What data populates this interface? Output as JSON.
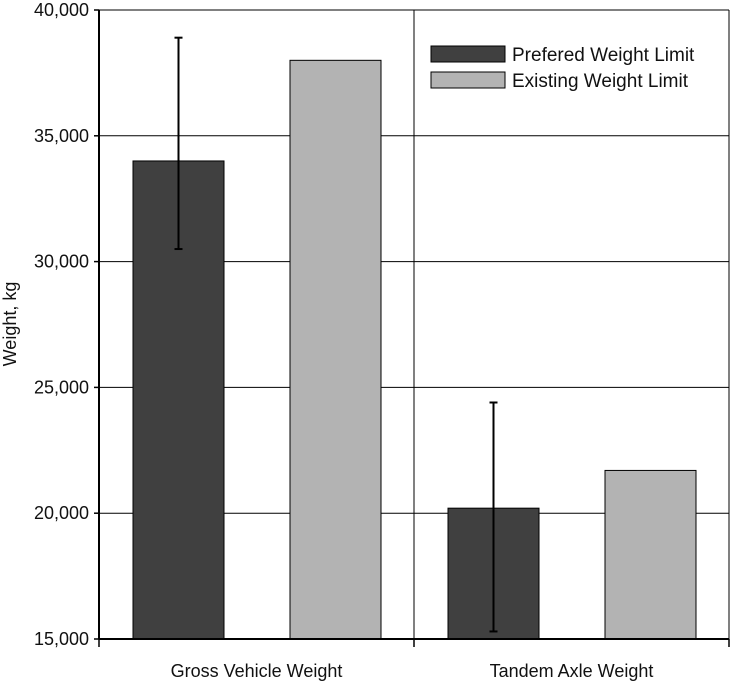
{
  "chart_data": {
    "type": "bar",
    "categories": [
      "Gross Vehicle Weight",
      "Tandem Axle Weight"
    ],
    "series": [
      {
        "name": "Prefered Weight Limit",
        "values": [
          34000,
          20200
        ],
        "error_low": [
          30500,
          15300
        ],
        "error_high": [
          38900,
          24400
        ],
        "color": "#404040"
      },
      {
        "name": "Existing Weight Limit",
        "values": [
          38000,
          21700
        ],
        "color": "#b3b3b3"
      }
    ],
    "xlabel": "",
    "ylabel": "Weight, kg",
    "ylim": [
      15000,
      40000
    ],
    "yticks": [
      15000,
      20000,
      25000,
      30000,
      35000,
      40000
    ],
    "ytick_labels": [
      "15,000",
      "20,000",
      "25,000",
      "30,000",
      "35,000",
      "40,000"
    ],
    "grid": true,
    "legend_position": "top-right"
  }
}
